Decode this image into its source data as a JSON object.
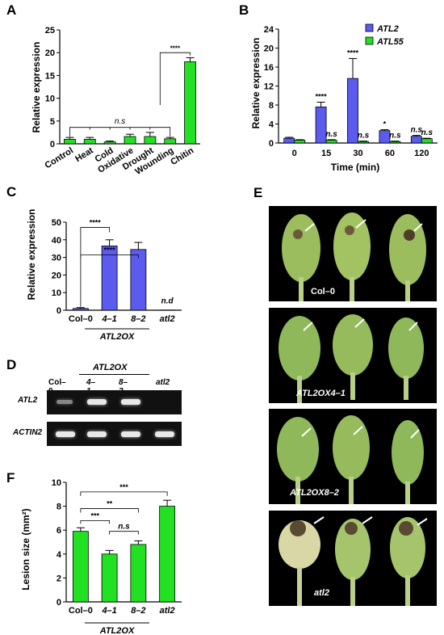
{
  "panels": {
    "A": "A",
    "B": "B",
    "C": "C",
    "D": "D",
    "E": "E",
    "F": "F"
  },
  "colors": {
    "blue": "#5b5bf0",
    "green": "#22e022",
    "dark": "#000000"
  },
  "panel_A": {
    "ylabel": "Relative expression",
    "ns_label": "n.s",
    "sig_label": "****"
  },
  "panel_B": {
    "xlabel": "Time (min)",
    "ylabel": "Relative expression"
  },
  "panel_C": {
    "ylabel": "Relative expression",
    "group_label": "ATL2OX",
    "nd_label": "n.d"
  },
  "panel_D": {
    "group_label": "ATL2OX",
    "lanes": [
      "Col–0",
      "4–1",
      "8–2",
      "atl2"
    ],
    "rows": [
      "ATL2",
      "ACTIN2"
    ]
  },
  "panel_E": {
    "labels": [
      "Col–0",
      "ATL2OX4–1",
      "ATL2OX8–2",
      "atl2"
    ]
  },
  "panel_F": {
    "ylabel": "Lesion size (mm²)",
    "group_label": "ATL2OX",
    "ns_label": "n.s"
  },
  "chart_data": [
    {
      "id": "A",
      "type": "bar",
      "categories": [
        "Control",
        "Heat",
        "Cold",
        "Oxidative",
        "Drought",
        "Wounding",
        "Chitin"
      ],
      "values": [
        1.0,
        1.0,
        0.4,
        1.6,
        1.6,
        1.1,
        18.0
      ],
      "errors": [
        0.4,
        0.4,
        0.2,
        0.5,
        0.9,
        0.3,
        0.9
      ],
      "ylabel": "Relative expression",
      "ylim": [
        0,
        25
      ],
      "yticks": [
        0,
        5,
        10,
        15,
        20,
        25
      ],
      "annotations": [
        "n.s",
        "****"
      ]
    },
    {
      "id": "B",
      "type": "bar",
      "categories": [
        "0",
        "15",
        "30",
        "60",
        "120"
      ],
      "series": [
        {
          "name": "ATL2",
          "values": [
            1.0,
            7.6,
            13.6,
            2.6,
            1.4
          ],
          "errors": [
            0.2,
            1.0,
            4.2,
            0.2,
            0.2
          ]
        },
        {
          "name": "ATL55",
          "values": [
            0.6,
            0.6,
            0.3,
            0.3,
            0.9
          ],
          "errors": [
            0.1,
            0.1,
            0.1,
            0.1,
            0.1
          ]
        }
      ],
      "xlabel": "Time (min)",
      "ylabel": "Relative expression",
      "ylim": [
        0,
        24
      ],
      "yticks": [
        0,
        4,
        8,
        12,
        16,
        20,
        24
      ],
      "annotations": [
        [
          "",
          ""
        ],
        [
          "****",
          "n.s"
        ],
        [
          "****",
          "n.s"
        ],
        [
          "*",
          "n.s"
        ],
        [
          "n.s",
          "n.s"
        ]
      ],
      "legend": "top-right"
    },
    {
      "id": "C",
      "type": "bar",
      "categories": [
        "Col–0",
        "4–1",
        "8–2",
        "atl2"
      ],
      "values": [
        1.0,
        36.5,
        34.5,
        0.1
      ],
      "errors": [
        0.5,
        3.5,
        4.0,
        0.0
      ],
      "colors": [
        "#5b5bf0",
        "#5b5bf0",
        "#5b5bf0",
        "#5b5bf0"
      ],
      "ylabel": "Relative expression",
      "ylim": [
        0,
        50
      ],
      "yticks": [
        0,
        10,
        20,
        30,
        40,
        50
      ],
      "annotations": [
        "****",
        "****",
        "n.d"
      ]
    },
    {
      "id": "F",
      "type": "bar",
      "categories": [
        "Col–0",
        "4–1",
        "8–2",
        "atl2"
      ],
      "values": [
        5.9,
        4.0,
        4.8,
        8.0
      ],
      "errors": [
        0.3,
        0.3,
        0.3,
        0.5
      ],
      "ylabel": "Lesion size (mm²)",
      "ylim": [
        0,
        10
      ],
      "yticks": [
        0,
        2,
        4,
        6,
        8,
        10
      ],
      "annotations": [
        "***",
        "**",
        "***",
        "n.s"
      ]
    }
  ]
}
